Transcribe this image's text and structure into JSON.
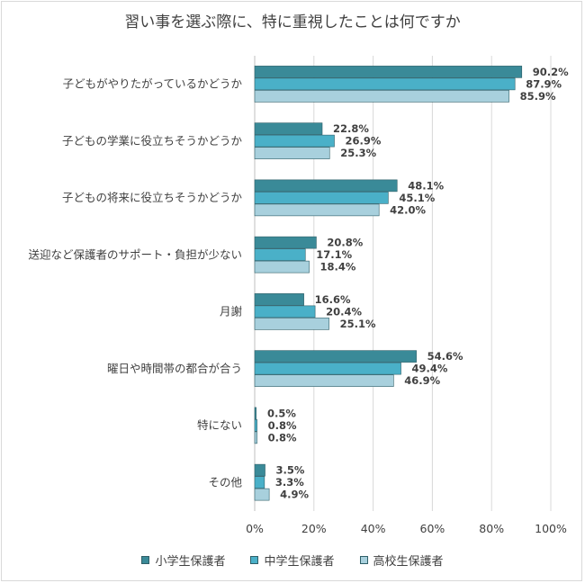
{
  "chart_data": {
    "type": "bar",
    "orientation": "horizontal",
    "title": "習い事を選ぶ際に、特に重視したことは何ですか",
    "categories": [
      "子どもがやりたがっているかどうか",
      "子どもの学業に役立ちそうかどうか",
      "子どもの将来に役立ちそうかどうか",
      "送迎など保護者のサポート・負担が少ない",
      "月謝",
      "曜日や時間帯の都合が合う",
      "特にない",
      "その他"
    ],
    "series": [
      {
        "name": "小学生保護者",
        "color": "#3a8a98",
        "values": [
          90.2,
          22.8,
          48.1,
          20.8,
          16.6,
          54.6,
          0.5,
          3.5
        ]
      },
      {
        "name": "中学生保護者",
        "color": "#4ab0c8",
        "values": [
          87.9,
          26.9,
          45.1,
          17.1,
          20.4,
          49.4,
          0.8,
          3.3
        ]
      },
      {
        "name": "高校生保護者",
        "color": "#a8d0dd",
        "values": [
          85.9,
          25.3,
          42.0,
          18.4,
          25.1,
          46.9,
          0.8,
          4.9
        ]
      }
    ],
    "xlim": [
      0,
      100
    ],
    "xticks": [
      "0%",
      "20%",
      "40%",
      "60%",
      "80%",
      "100%"
    ],
    "grid": true,
    "legend_position": "bottom"
  }
}
